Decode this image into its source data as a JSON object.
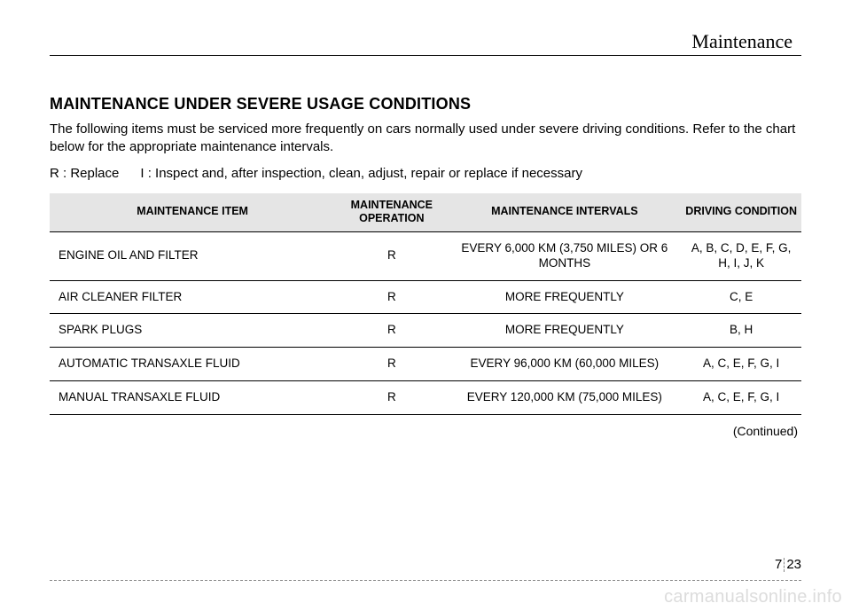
{
  "header": {
    "section": "Maintenance"
  },
  "title": "MAINTENANCE UNDER SEVERE USAGE CONDITIONS",
  "intro": "The following items must be serviced more frequently on cars normally used under severe driving conditions. Refer to the chart below for the appropriate maintenance intervals.",
  "legend": {
    "r": "R : Replace",
    "i": "I : Inspect and, after inspection, clean, adjust, repair or replace if necessary"
  },
  "table": {
    "columns": [
      "MAINTENANCE ITEM",
      "MAINTENANCE OPERATION",
      "MAINTENANCE INTERVALS",
      "DRIVING CONDITION"
    ],
    "rows": [
      {
        "item": "ENGINE OIL AND FILTER",
        "op": "R",
        "interval": "EVERY 6,000 KM (3,750 MILES) OR 6 MONTHS",
        "cond": "A, B, C, D, E, F, G, H, I, J, K"
      },
      {
        "item": "AIR CLEANER FILTER",
        "op": "R",
        "interval": "MORE FREQUENTLY",
        "cond": "C, E"
      },
      {
        "item": "SPARK PLUGS",
        "op": "R",
        "interval": "MORE FREQUENTLY",
        "cond": "B, H"
      },
      {
        "item": "AUTOMATIC TRANSAXLE FLUID",
        "op": "R",
        "interval": "EVERY 96,000 KM (60,000 MILES)",
        "cond": "A, C, E, F, G, I"
      },
      {
        "item": "MANUAL TRANSAXLE FLUID",
        "op": "R",
        "interval": "EVERY 120,000 KM (75,000 MILES)",
        "cond": "A, C, E, F, G, I"
      }
    ]
  },
  "continued": "(Continued)",
  "page": {
    "chapter": "7",
    "num": "23"
  },
  "watermark": "carmanualsonline.info"
}
